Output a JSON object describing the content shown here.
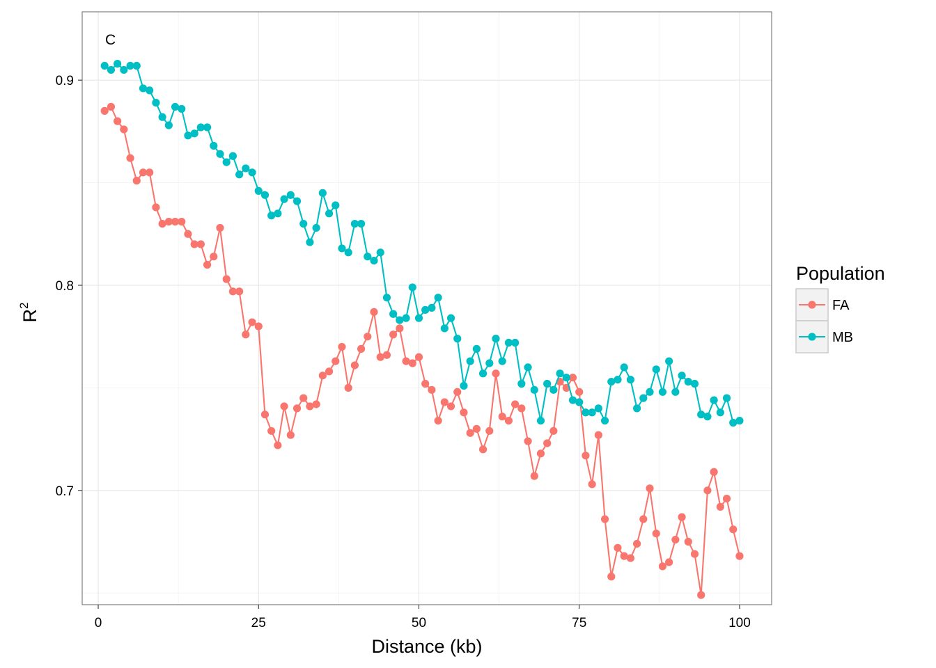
{
  "chart_data": {
    "type": "line",
    "panel_tag": "C",
    "xlabel": "Distance (kb)",
    "ylabel": "R",
    "ylabel_superscript": "2",
    "xlim": [
      -2.5,
      105
    ],
    "ylim": [
      0.6443,
      0.9333
    ],
    "x_ticks": [
      0,
      25,
      50,
      75,
      100
    ],
    "x_tick_labels": [
      "0",
      "25",
      "50",
      "75",
      "100"
    ],
    "y_ticks": [
      0.7,
      0.8,
      0.9
    ],
    "y_tick_labels": [
      "0.7",
      "0.8",
      "0.9"
    ],
    "y_minor_ticks": [
      0.65,
      0.75,
      0.85
    ],
    "grid": true,
    "legend": {
      "title": "Population",
      "position": "right"
    },
    "x": [
      1,
      2,
      3,
      4,
      5,
      6,
      7,
      8,
      9,
      10,
      11,
      12,
      13,
      14,
      15,
      16,
      17,
      18,
      19,
      20,
      21,
      22,
      23,
      24,
      25,
      26,
      27,
      28,
      29,
      30,
      31,
      32,
      33,
      34,
      35,
      36,
      37,
      38,
      39,
      40,
      41,
      42,
      43,
      44,
      45,
      46,
      47,
      48,
      49,
      50,
      51,
      52,
      53,
      54,
      55,
      56,
      57,
      58,
      59,
      60,
      61,
      62,
      63,
      64,
      65,
      66,
      67,
      68,
      69,
      70,
      71,
      72,
      73,
      74,
      75,
      76,
      77,
      78,
      79,
      80,
      81,
      82,
      83,
      84,
      85,
      86,
      87,
      88,
      89,
      90,
      91,
      92,
      93,
      94,
      95,
      96,
      97,
      98,
      99,
      100
    ],
    "series": [
      {
        "name": "FA",
        "color": "#F8766D",
        "values": [
          0.885,
          0.887,
          0.88,
          0.876,
          0.862,
          0.851,
          0.855,
          0.855,
          0.838,
          0.83,
          0.831,
          0.831,
          0.831,
          0.825,
          0.82,
          0.82,
          0.81,
          0.814,
          0.828,
          0.803,
          0.797,
          0.797,
          0.776,
          0.782,
          0.78,
          0.737,
          0.729,
          0.722,
          0.741,
          0.727,
          0.74,
          0.745,
          0.741,
          0.742,
          0.756,
          0.758,
          0.763,
          0.77,
          0.75,
          0.761,
          0.769,
          0.775,
          0.787,
          0.765,
          0.766,
          0.776,
          0.779,
          0.763,
          0.762,
          0.765,
          0.752,
          0.749,
          0.734,
          0.743,
          0.741,
          0.748,
          0.738,
          0.728,
          0.73,
          0.72,
          0.729,
          0.757,
          0.736,
          0.734,
          0.742,
          0.74,
          0.724,
          0.707,
          0.718,
          0.723,
          0.729,
          0.753,
          0.75,
          0.755,
          0.748,
          0.717,
          0.703,
          0.727,
          0.686,
          0.658,
          0.672,
          0.668,
          0.667,
          0.674,
          0.686,
          0.701,
          0.679,
          0.663,
          0.665,
          0.676,
          0.687,
          0.675,
          0.669,
          0.649,
          0.7,
          0.709,
          0.692,
          0.696,
          0.681,
          0.668
        ]
      },
      {
        "name": "MB",
        "color": "#00BFC4",
        "values": [
          0.907,
          0.905,
          0.908,
          0.905,
          0.907,
          0.907,
          0.896,
          0.895,
          0.889,
          0.882,
          0.878,
          0.887,
          0.886,
          0.873,
          0.874,
          0.877,
          0.877,
          0.868,
          0.864,
          0.86,
          0.863,
          0.854,
          0.857,
          0.855,
          0.846,
          0.844,
          0.834,
          0.835,
          0.842,
          0.844,
          0.841,
          0.83,
          0.821,
          0.828,
          0.845,
          0.835,
          0.839,
          0.818,
          0.816,
          0.83,
          0.83,
          0.814,
          0.812,
          0.816,
          0.794,
          0.786,
          0.783,
          0.784,
          0.799,
          0.784,
          0.788,
          0.789,
          0.794,
          0.779,
          0.784,
          0.774,
          0.751,
          0.763,
          0.769,
          0.757,
          0.762,
          0.774,
          0.763,
          0.772,
          0.772,
          0.752,
          0.76,
          0.749,
          0.734,
          0.752,
          0.749,
          0.757,
          0.755,
          0.744,
          0.743,
          0.738,
          0.738,
          0.74,
          0.734,
          0.753,
          0.754,
          0.76,
          0.754,
          0.74,
          0.745,
          0.748,
          0.759,
          0.748,
          0.763,
          0.748,
          0.756,
          0.753,
          0.752,
          0.737,
          0.736,
          0.744,
          0.738,
          0.745,
          0.733,
          0.734
        ]
      }
    ]
  }
}
